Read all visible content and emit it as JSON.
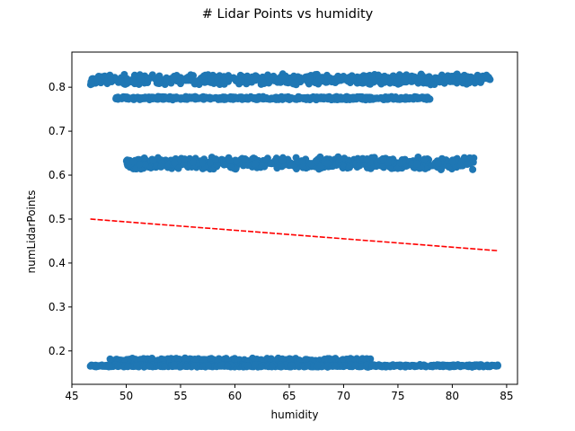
{
  "chart_data": {
    "type": "scatter",
    "title": "# Lidar Points vs humidity",
    "xlabel": "humidity",
    "ylabel": "numLidarPoints",
    "xlim": [
      45,
      86
    ],
    "ylim": [
      0.124,
      0.88
    ],
    "xticks": [
      "45",
      "50",
      "55",
      "60",
      "65",
      "70",
      "75",
      "80",
      "85"
    ],
    "yticks": [
      "0.2",
      "0.3",
      "0.4",
      "0.5",
      "0.6",
      "0.7",
      "0.8"
    ],
    "grid": false,
    "point_color": "#1f77b4",
    "trend_color": "#ff0000",
    "clusters": [
      {
        "x_range": [
          46.7,
          83.5
        ],
        "y_center": 0.818,
        "y_spread": 0.013
      },
      {
        "x_range": [
          49.0,
          78.0
        ],
        "y_center": 0.775,
        "y_spread": 0.004
      },
      {
        "x_range": [
          50.0,
          82.0
        ],
        "y_center": 0.627,
        "y_spread": 0.016
      },
      {
        "x_range": [
          48.5,
          72.5
        ],
        "y_center": 0.178,
        "y_spread": 0.006
      },
      {
        "x_range": [
          46.7,
          84.2
        ],
        "y_center": 0.166,
        "y_spread": 0.003
      }
    ],
    "trend_line": {
      "x": [
        46.7,
        84.2
      ],
      "y": [
        0.5,
        0.428
      ]
    }
  }
}
